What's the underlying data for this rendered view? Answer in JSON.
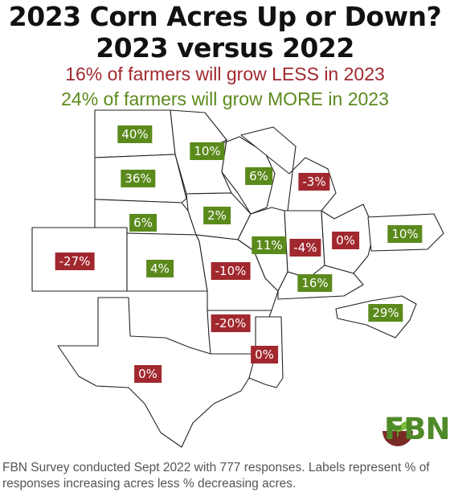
{
  "title": {
    "line1": "2023 Corn Acres Up or Down?",
    "line2": "2023 versus 2022"
  },
  "subtitle": {
    "less": "16% of farmers will grow LESS in 2023",
    "more": "24% of farmers will grow MORE in 2023"
  },
  "colors": {
    "positive": "#5b8a1c",
    "negative": "#a1282e",
    "title": "#111111",
    "footnote": "#555555"
  },
  "states": [
    {
      "id": "ND",
      "value": "40%",
      "sign": "positive"
    },
    {
      "id": "MN",
      "value": "10%",
      "sign": "positive"
    },
    {
      "id": "SD",
      "value": "36%",
      "sign": "positive"
    },
    {
      "id": "WI",
      "value": "6%",
      "sign": "positive"
    },
    {
      "id": "MI",
      "value": "-3%",
      "sign": "negative"
    },
    {
      "id": "IA",
      "value": "2%",
      "sign": "positive"
    },
    {
      "id": "NE",
      "value": "6%",
      "sign": "positive"
    },
    {
      "id": "IL",
      "value": "11%",
      "sign": "positive"
    },
    {
      "id": "IN",
      "value": "-4%",
      "sign": "negative"
    },
    {
      "id": "OH",
      "value": "0%",
      "sign": "negative"
    },
    {
      "id": "PA",
      "value": "10%",
      "sign": "positive"
    },
    {
      "id": "CO",
      "value": "-27%",
      "sign": "negative"
    },
    {
      "id": "KS",
      "value": "4%",
      "sign": "positive"
    },
    {
      "id": "MO",
      "value": "-10%",
      "sign": "negative"
    },
    {
      "id": "KY",
      "value": "16%",
      "sign": "positive"
    },
    {
      "id": "NC",
      "value": "29%",
      "sign": "positive"
    },
    {
      "id": "AR",
      "value": "-20%",
      "sign": "negative"
    },
    {
      "id": "MS",
      "value": "0%",
      "sign": "negative"
    },
    {
      "id": "TX",
      "value": "0%",
      "sign": "negative"
    }
  ],
  "logo": {
    "text": "FBN",
    "icon": "sprout-icon"
  },
  "footnote": "FBN Survey conducted Sept 2022 with 777 responses. Labels represent % of responses increasing acres less % decreasing acres."
}
